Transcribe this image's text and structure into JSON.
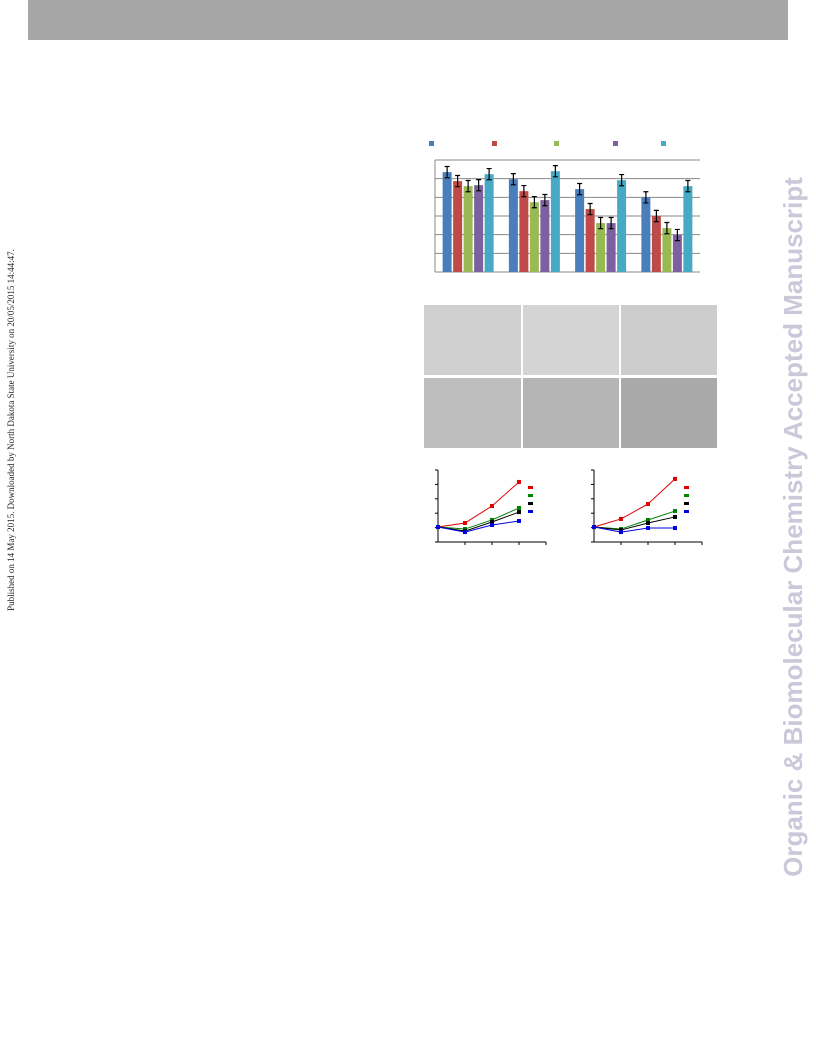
{
  "sidebar_note": "Published on 14 May 2015. Downloaded by North Dakota State University on 20/05/2015 14:44:47.",
  "watermark": "Organic & Biomolecular Chemistry Accepted Manuscript",
  "chart_data": [
    {
      "type": "bar",
      "categories": [
        null,
        null,
        null,
        null
      ],
      "series": [
        {
          "color": "#4a7ebb",
          "values": [
            5.35,
            4.97,
            4.44,
            4.0
          ],
          "errors": [
            0.3,
            0.3,
            0.3,
            0.3
          ]
        },
        {
          "color": "#be4b48",
          "values": [
            4.87,
            4.33,
            3.37,
            3.0
          ],
          "errors": [
            0.3,
            0.3,
            0.3,
            0.3
          ]
        },
        {
          "color": "#98b954",
          "values": [
            4.6,
            3.74,
            2.62,
            2.35
          ],
          "errors": [
            0.3,
            0.3,
            0.3,
            0.3
          ]
        },
        {
          "color": "#7d60a0",
          "values": [
            4.65,
            3.85,
            2.62,
            1.98
          ],
          "errors": [
            0.3,
            0.3,
            0.3,
            0.3
          ]
        },
        {
          "color": "#46aac5",
          "values": [
            5.24,
            5.4,
            4.92,
            4.6
          ],
          "errors": [
            0.3,
            0.3,
            0.3,
            0.3
          ]
        }
      ],
      "ylim": [
        0,
        6
      ],
      "yticks": [
        0,
        1,
        2,
        3,
        4,
        5,
        6
      ],
      "grid": true
    },
    {
      "type": "line",
      "categories": [
        null,
        null,
        null,
        null
      ],
      "series": [
        {
          "color": "#e00000",
          "values": [
            1.04,
            1.32,
            2.5,
            4.17
          ]
        },
        {
          "color": "#008000",
          "values": [
            1.04,
            0.9,
            1.53,
            2.36
          ]
        },
        {
          "color": "#000000",
          "values": [
            1.04,
            0.76,
            1.39,
            2.08
          ]
        },
        {
          "color": "#0000e0",
          "values": [
            1.04,
            0.69,
            1.18,
            1.46
          ]
        }
      ],
      "ylim": [
        0,
        5
      ],
      "yticks": [
        0,
        1,
        2,
        3,
        4,
        5
      ]
    },
    {
      "type": "line",
      "categories": [
        null,
        null,
        null,
        null
      ],
      "series": [
        {
          "color": "#e00000",
          "values": [
            1.04,
            1.6,
            2.64,
            4.38
          ]
        },
        {
          "color": "#008000",
          "values": [
            1.04,
            0.9,
            1.53,
            2.15
          ]
        },
        {
          "color": "#000000",
          "values": [
            1.04,
            0.83,
            1.32,
            1.74
          ]
        },
        {
          "color": "#0000e0",
          "values": [
            1.04,
            0.69,
            0.97,
            0.97
          ]
        }
      ],
      "ylim": [
        0,
        5
      ],
      "yticks": [
        0,
        1,
        2,
        3,
        4,
        5
      ]
    }
  ]
}
